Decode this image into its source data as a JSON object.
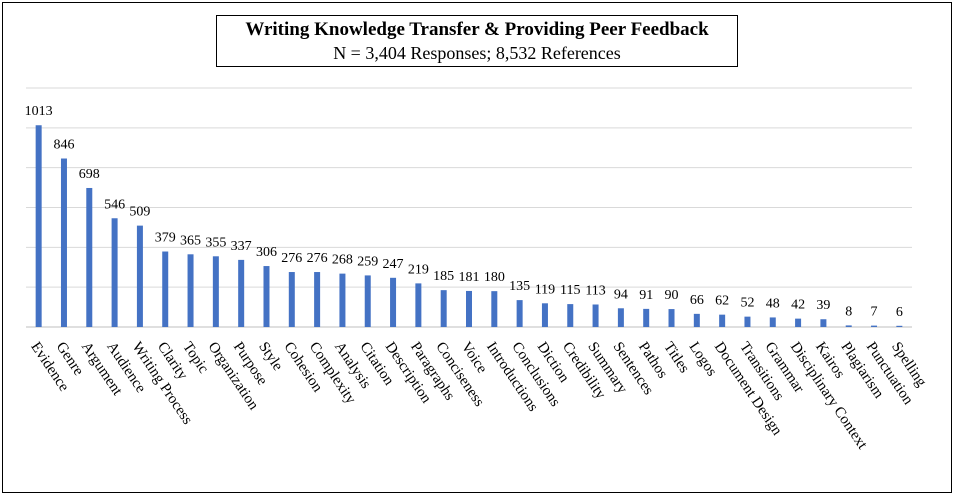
{
  "chart_data": {
    "type": "bar",
    "title": "Writing Knowledge Transfer & Providing Peer Feedback",
    "subtitle": "N = 3,404 Responses; 8,532 References",
    "categories": [
      "Evidence",
      "Genre",
      "Argument",
      "Audience",
      "Writing Process",
      "Clarity",
      "Topic",
      "Organization",
      "Purpose",
      "Style",
      "Cohesion",
      "Complexity",
      "Analysis",
      "Citation",
      "Description",
      "Paragraphs",
      "Conciseness",
      "Voice",
      "Introductions",
      "Conclusions",
      "Diction",
      "Credibility",
      "Summary",
      "Sentences",
      "Pathos",
      "Titles",
      "Logos",
      "Document Design",
      "Transitions",
      "Grammar",
      "Disciplinary Context",
      "Kairos",
      "Plagiarism",
      "Punctuation",
      "Spelling"
    ],
    "values": [
      1013,
      846,
      698,
      546,
      509,
      379,
      365,
      355,
      337,
      306,
      276,
      276,
      268,
      259,
      247,
      219,
      185,
      181,
      180,
      135,
      119,
      115,
      113,
      94,
      91,
      90,
      66,
      62,
      52,
      48,
      42,
      39,
      8,
      7,
      6
    ],
    "ylim": [
      0,
      1200
    ],
    "grid": true,
    "bar_color": "#4472C4",
    "grid_color": "#d9d9d9"
  }
}
